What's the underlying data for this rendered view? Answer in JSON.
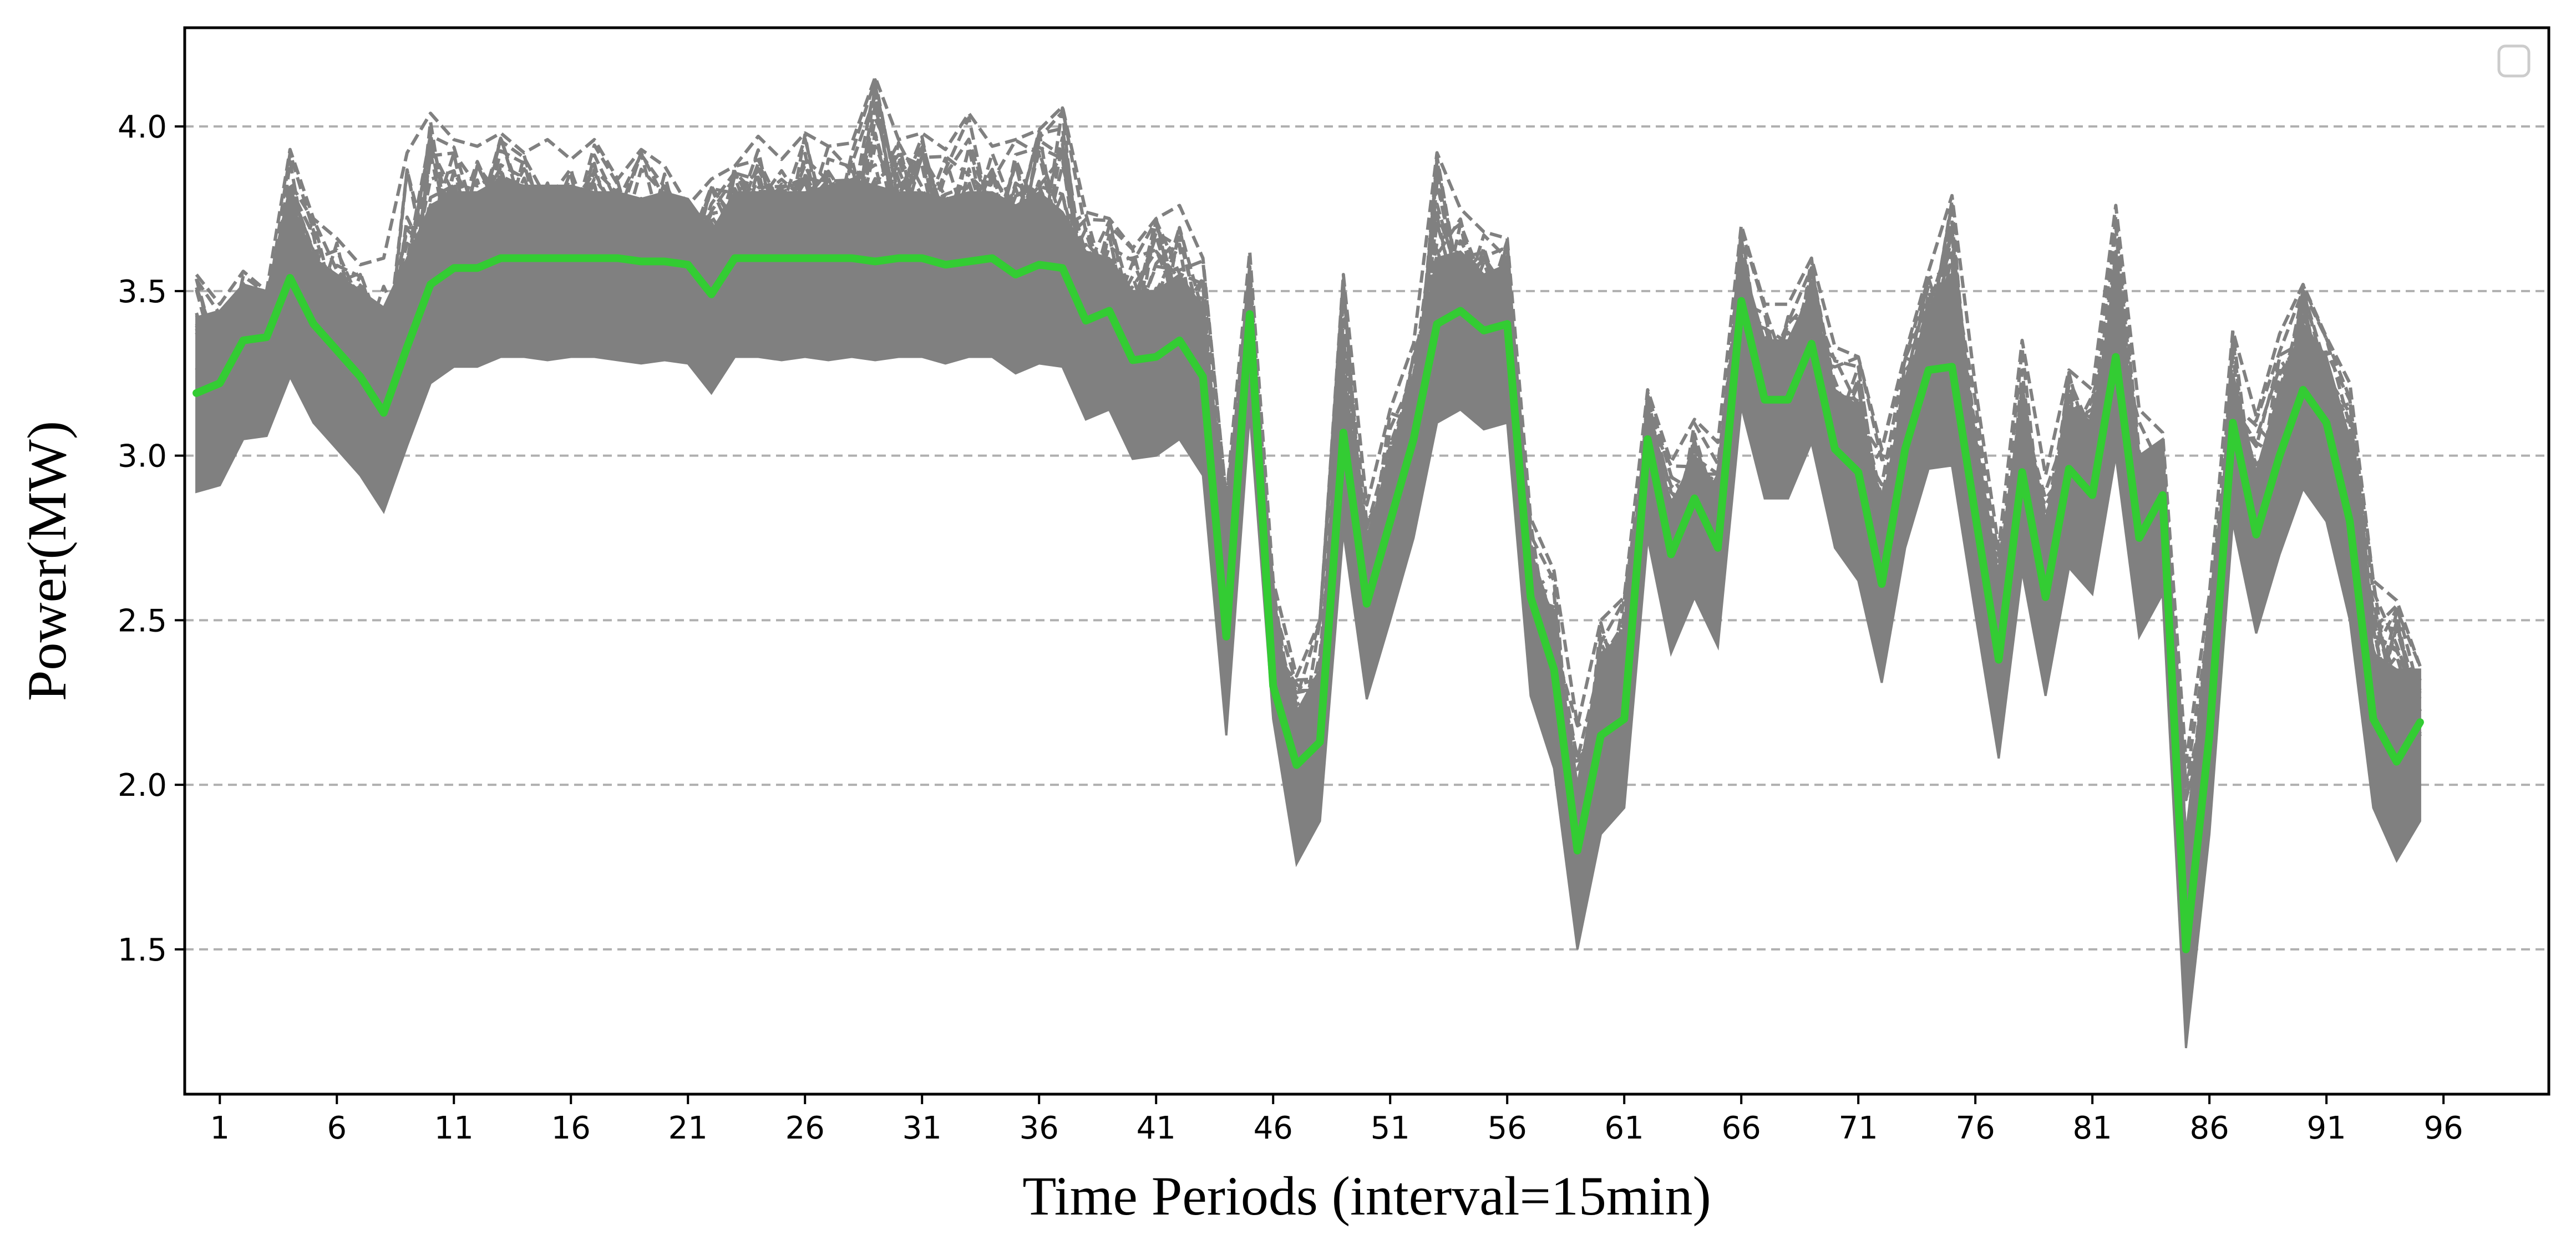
{
  "chart_data": {
    "type": "line",
    "title": "",
    "xlabel": "Time Periods (interval=15min)",
    "ylabel": "Power(MW)",
    "xlim": [
      -0.5,
      100.5
    ],
    "ylim": [
      1.06,
      4.3
    ],
    "x_ticks": [
      1,
      6,
      11,
      16,
      21,
      26,
      31,
      36,
      41,
      46,
      51,
      56,
      61,
      66,
      71,
      76,
      81,
      86,
      91,
      96
    ],
    "y_ticks": [
      1.5,
      2.0,
      2.5,
      3.0,
      3.5,
      4.0
    ],
    "y_tick_labels": [
      "1.5",
      "2.0",
      "2.5",
      "3.0",
      "3.5",
      "4.0"
    ],
    "grid": "horizontal dashed",
    "legend": "top-right (empty)",
    "colors": {
      "scenarios": "#808080",
      "highlight": "#33cc33",
      "grid": "#b0b0b0"
    },
    "x": [
      0,
      1,
      2,
      3,
      4,
      5,
      6,
      7,
      8,
      9,
      10,
      11,
      12,
      13,
      14,
      15,
      16,
      17,
      18,
      19,
      20,
      21,
      22,
      23,
      24,
      25,
      26,
      27,
      28,
      29,
      30,
      31,
      32,
      33,
      34,
      35,
      36,
      37,
      38,
      39,
      40,
      41,
      42,
      43,
      44,
      45,
      46,
      47,
      48,
      49,
      50,
      51,
      52,
      53,
      54,
      55,
      56,
      57,
      58,
      59,
      60,
      61,
      62,
      63,
      64,
      65,
      66,
      67,
      68,
      69,
      70,
      71,
      72,
      73,
      74,
      75,
      76,
      77,
      78,
      79,
      80,
      81,
      82,
      83,
      84,
      85,
      86,
      87,
      88,
      89,
      90,
      91,
      92,
      93,
      94,
      95
    ],
    "series": [
      {
        "values": [
          3.19,
          3.22,
          3.35,
          3.36,
          3.54,
          3.4,
          3.32,
          3.24,
          3.13,
          3.33,
          3.52,
          3.57,
          3.57,
          3.6,
          3.6,
          3.6,
          3.6,
          3.6,
          3.6,
          3.59,
          3.59,
          3.58,
          3.49,
          3.6,
          3.6,
          3.6,
          3.6,
          3.6,
          3.6,
          3.59,
          3.6,
          3.6,
          3.58,
          3.59,
          3.6,
          3.55,
          3.58,
          3.57,
          3.41,
          3.44,
          3.29,
          3.3,
          3.35,
          3.24,
          2.45,
          3.43,
          2.3,
          2.06,
          2.13,
          3.07,
          2.55,
          2.8,
          3.05,
          3.4,
          3.44,
          3.38,
          3.4,
          2.57,
          2.35,
          1.8,
          2.15,
          2.2,
          3.05,
          2.7,
          2.87,
          2.72,
          3.47,
          3.17,
          3.17,
          3.34,
          3.02,
          2.95,
          2.61,
          3.02,
          3.26,
          3.27,
          2.82,
          2.38,
          2.95,
          2.57,
          2.96,
          2.88,
          3.3,
          2.75,
          2.88,
          1.5,
          2.15,
          3.1,
          2.76,
          3.0,
          3.2,
          3.1,
          2.8,
          2.2,
          2.07,
          2.19
        ]
      }
    ],
    "scenario_band": {
      "lower": [
        2.89,
        2.91,
        3.05,
        3.06,
        3.24,
        3.1,
        3.02,
        2.94,
        2.83,
        3.03,
        3.22,
        3.27,
        3.27,
        3.3,
        3.3,
        3.29,
        3.3,
        3.3,
        3.29,
        3.28,
        3.29,
        3.28,
        3.19,
        3.3,
        3.3,
        3.29,
        3.3,
        3.29,
        3.3,
        3.29,
        3.3,
        3.3,
        3.28,
        3.3,
        3.3,
        3.25,
        3.28,
        3.27,
        3.11,
        3.14,
        2.99,
        3.0,
        3.05,
        2.94,
        2.15,
        3.13,
        2.2,
        1.76,
        1.89,
        2.77,
        2.26,
        2.5,
        2.75,
        3.1,
        3.14,
        3.08,
        3.1,
        2.27,
        2.05,
        1.5,
        1.85,
        1.93,
        2.75,
        2.4,
        2.57,
        2.42,
        3.15,
        2.87,
        2.87,
        3.04,
        2.72,
        2.62,
        2.31,
        2.72,
        2.96,
        2.97,
        2.52,
        2.08,
        2.65,
        2.27,
        2.66,
        2.58,
        3.0,
        2.45,
        2.58,
        1.2,
        1.85,
        2.8,
        2.46,
        2.7,
        2.9,
        2.8,
        2.5,
        1.93,
        1.77,
        1.89
      ],
      "upper": [
        3.42,
        3.44,
        3.52,
        3.5,
        3.78,
        3.6,
        3.55,
        3.5,
        3.45,
        3.6,
        3.76,
        3.8,
        3.8,
        3.84,
        3.82,
        3.82,
        3.82,
        3.8,
        3.8,
        3.78,
        3.8,
        3.78,
        3.68,
        3.8,
        3.8,
        3.8,
        3.8,
        3.82,
        3.84,
        3.82,
        3.8,
        3.8,
        3.78,
        3.8,
        3.8,
        3.76,
        3.8,
        3.74,
        3.62,
        3.6,
        3.5,
        3.5,
        3.55,
        3.45,
        2.75,
        3.55,
        2.5,
        2.22,
        2.35,
        3.25,
        2.75,
        3.0,
        3.25,
        3.6,
        3.62,
        3.55,
        3.58,
        2.7,
        2.5,
        2.0,
        2.4,
        2.45,
        3.15,
        2.85,
        3.0,
        2.9,
        3.6,
        3.35,
        3.35,
        3.5,
        3.2,
        3.15,
        2.85,
        3.2,
        3.45,
        3.55,
        3.05,
        2.6,
        3.2,
        2.8,
        3.15,
        3.1,
        3.55,
        3.0,
        3.05,
        1.85,
        2.45,
        3.25,
        2.95,
        3.2,
        3.4,
        3.3,
        3.05,
        2.4,
        2.35,
        2.35
      ],
      "peaks": [
        3.55,
        3.46,
        3.56,
        3.5,
        3.93,
        3.72,
        3.66,
        3.58,
        3.6,
        3.92,
        4.04,
        3.96,
        3.94,
        3.98,
        3.92,
        3.96,
        3.9,
        3.96,
        3.84,
        3.93,
        3.88,
        3.76,
        3.84,
        3.88,
        3.97,
        3.9,
        3.98,
        3.94,
        3.95,
        4.15,
        3.96,
        3.98,
        3.93,
        4.04,
        3.94,
        3.96,
        3.99,
        4.06,
        3.74,
        3.72,
        3.63,
        3.72,
        3.76,
        3.6,
        2.87,
        3.62,
        2.62,
        2.33,
        2.5,
        3.55,
        2.85,
        3.14,
        3.34,
        3.92,
        3.75,
        3.68,
        3.66,
        2.81,
        2.65,
        2.18,
        2.5,
        2.57,
        3.2,
        2.98,
        3.11,
        3.04,
        3.7,
        3.46,
        3.46,
        3.6,
        3.33,
        3.3,
        3.02,
        3.31,
        3.56,
        3.79,
        3.21,
        2.72,
        3.35,
        2.94,
        3.26,
        3.2,
        3.76,
        3.14,
        3.07,
        2.07,
        2.58,
        3.38,
        3.12,
        3.37,
        3.52,
        3.36,
        3.22,
        2.62,
        2.56,
        2.36
      ],
      "scenario_count": 30
    }
  }
}
